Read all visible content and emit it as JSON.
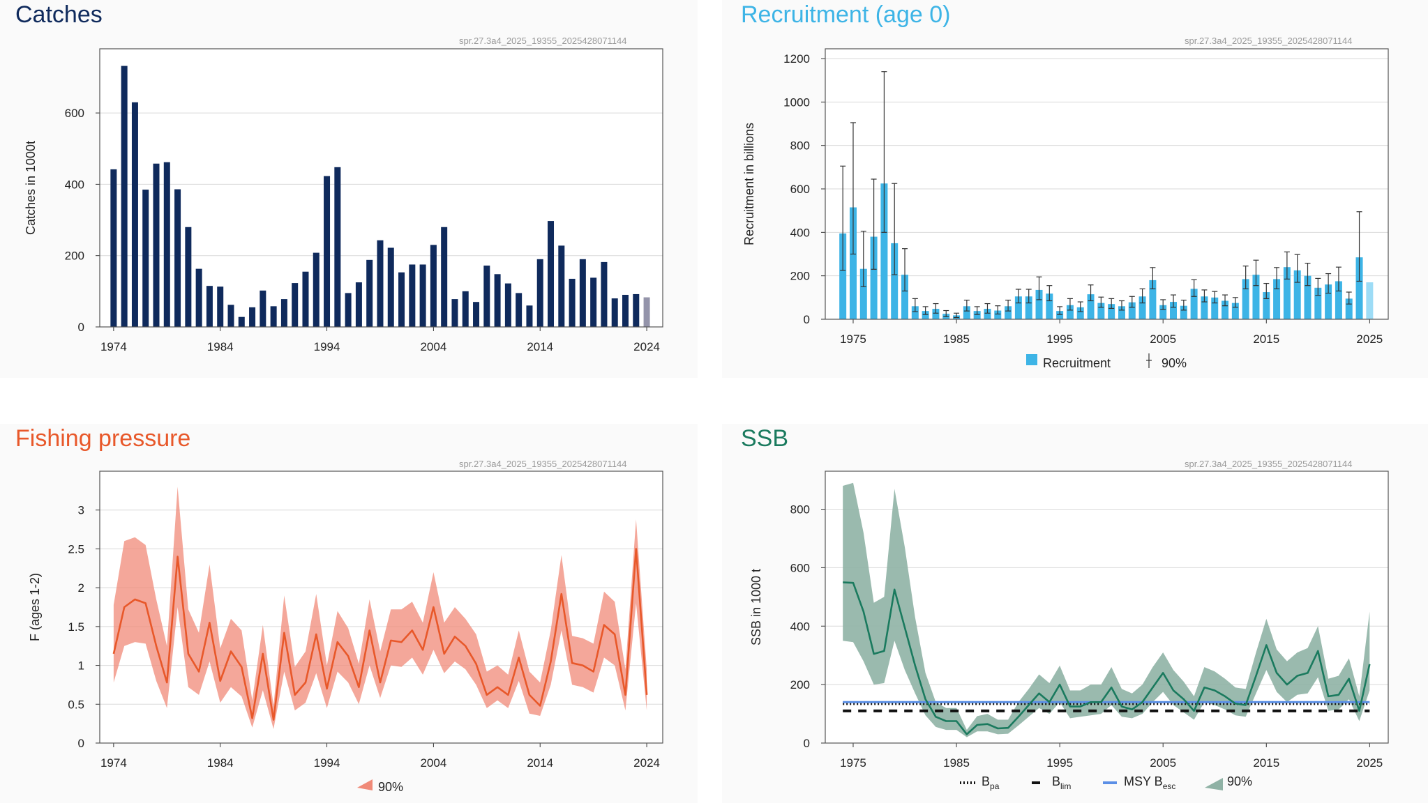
{
  "charts": {
    "catches": {
      "title": "Catches",
      "title_color": "#0f2a5c",
      "stamp": "spr.27.3a4_2025_19355_2025428071144",
      "chart_data": {
        "type": "bar",
        "ylabel": "Catches in 1000t",
        "xlim": [
          1972.7,
          2025.5
        ],
        "ylim": [
          0,
          780
        ],
        "yticks": [
          0,
          200,
          400,
          600
        ],
        "xticks": [
          1974,
          1984,
          1994,
          2004,
          2014,
          2024
        ],
        "bar_color": "#0f2a5c",
        "last_bar_color": "#9494aa",
        "x": [
          1974,
          1975,
          1976,
          1977,
          1978,
          1979,
          1980,
          1981,
          1982,
          1983,
          1984,
          1985,
          1986,
          1987,
          1988,
          1989,
          1990,
          1991,
          1992,
          1993,
          1994,
          1995,
          1996,
          1997,
          1998,
          1999,
          2000,
          2001,
          2002,
          2003,
          2004,
          2005,
          2006,
          2007,
          2008,
          2009,
          2010,
          2011,
          2012,
          2013,
          2014,
          2015,
          2016,
          2017,
          2018,
          2019,
          2020,
          2021,
          2022,
          2023,
          2024
        ],
        "values": [
          442,
          732,
          630,
          385,
          458,
          462,
          386,
          280,
          163,
          115,
          113,
          62,
          28,
          55,
          102,
          58,
          78,
          123,
          155,
          208,
          423,
          448,
          95,
          125,
          188,
          243,
          222,
          153,
          175,
          175,
          230,
          280,
          78,
          100,
          70,
          172,
          148,
          122,
          95,
          60,
          190,
          297,
          228,
          135,
          190,
          138,
          182,
          80,
          90,
          92,
          83
        ]
      }
    },
    "recruitment": {
      "title": "Recruitment (age 0)",
      "title_color": "#3db4e6",
      "stamp": "spr.27.3a4_2025_19355_2025428071144",
      "chart_data": {
        "type": "bar",
        "ylabel": "Recruitment in billions",
        "xlim": [
          1972.3,
          2026.8
        ],
        "ylim": [
          0,
          1245
        ],
        "yticks": [
          0,
          200,
          400,
          600,
          800,
          1000,
          1200
        ],
        "xticks": [
          1975,
          1985,
          1995,
          2005,
          2015,
          2025
        ],
        "bar_color": "#3db4e6",
        "last_bar_color": "#9ddcf6",
        "x": [
          1974,
          1975,
          1976,
          1977,
          1978,
          1979,
          1980,
          1981,
          1982,
          1983,
          1984,
          1985,
          1986,
          1987,
          1988,
          1989,
          1990,
          1991,
          1992,
          1993,
          1994,
          1995,
          1996,
          1997,
          1998,
          1999,
          2000,
          2001,
          2002,
          2003,
          2004,
          2005,
          2006,
          2007,
          2008,
          2009,
          2010,
          2011,
          2012,
          2013,
          2014,
          2015,
          2016,
          2017,
          2018,
          2019,
          2020,
          2021,
          2022,
          2023,
          2024,
          2025
        ],
        "values": [
          395,
          515,
          232,
          380,
          625,
          350,
          205,
          60,
          38,
          48,
          25,
          18,
          60,
          38,
          48,
          40,
          60,
          105,
          105,
          135,
          118,
          38,
          65,
          55,
          115,
          75,
          70,
          60,
          78,
          105,
          180,
          65,
          80,
          62,
          140,
          105,
          100,
          85,
          75,
          185,
          205,
          125,
          185,
          240,
          225,
          200,
          145,
          160,
          175,
          95,
          285,
          170
        ],
        "ci_low": [
          225,
          300,
          150,
          230,
          400,
          205,
          130,
          35,
          22,
          28,
          12,
          8,
          38,
          22,
          28,
          24,
          38,
          75,
          75,
          90,
          85,
          22,
          42,
          35,
          85,
          55,
          50,
          42,
          55,
          75,
          140,
          45,
          55,
          42,
          105,
          80,
          75,
          62,
          55,
          140,
          155,
          95,
          140,
          185,
          170,
          155,
          110,
          120,
          130,
          70,
          175,
          null
        ],
        "ci_high": [
          705,
          905,
          405,
          645,
          1140,
          625,
          325,
          95,
          58,
          72,
          40,
          28,
          88,
          58,
          72,
          62,
          88,
          138,
          138,
          195,
          155,
          58,
          95,
          80,
          158,
          102,
          95,
          85,
          105,
          140,
          238,
          90,
          112,
          88,
          182,
          135,
          128,
          112,
          100,
          245,
          272,
          165,
          238,
          310,
          298,
          258,
          188,
          210,
          240,
          125,
          495,
          null
        ],
        "legend": {
          "bar_label": "Recruitment",
          "ci_label": "90%"
        }
      }
    },
    "fishing": {
      "title": "Fishing pressure",
      "title_color": "#e8582a",
      "stamp": "spr.27.3a4_2025_19355_2025428071144",
      "chart_data": {
        "type": "area",
        "ylabel": "F (ages 1-2)",
        "xlim": [
          1972.7,
          2025.5
        ],
        "ylim": [
          0,
          3.5
        ],
        "yticks": [
          0,
          0.5,
          1,
          1.5,
          2,
          2.5,
          3
        ],
        "ytick_labels": [
          "0",
          "0.5",
          "1",
          "1.5",
          "2",
          "2.5",
          "3"
        ],
        "xticks": [
          1974,
          1984,
          1994,
          2004,
          2014,
          2024
        ],
        "line_color": "#e8582a",
        "band_color": "#f08a78",
        "x": [
          1974,
          1975,
          1976,
          1977,
          1978,
          1979,
          1980,
          1981,
          1982,
          1983,
          1984,
          1985,
          1986,
          1987,
          1988,
          1989,
          1990,
          1991,
          1992,
          1993,
          1994,
          1995,
          1996,
          1997,
          1998,
          1999,
          2000,
          2001,
          2002,
          2003,
          2004,
          2005,
          2006,
          2007,
          2008,
          2009,
          2010,
          2011,
          2012,
          2013,
          2014,
          2015,
          2016,
          2017,
          2018,
          2019,
          2020,
          2021,
          2022,
          2023,
          2024
        ],
        "values": [
          1.15,
          1.75,
          1.85,
          1.8,
          1.25,
          0.78,
          2.4,
          1.15,
          0.92,
          1.55,
          0.8,
          1.18,
          0.98,
          0.32,
          1.15,
          0.3,
          1.42,
          0.62,
          0.78,
          1.4,
          0.7,
          1.3,
          1.12,
          0.72,
          1.45,
          0.78,
          1.32,
          1.3,
          1.45,
          1.2,
          1.75,
          1.15,
          1.37,
          1.25,
          1.02,
          0.62,
          0.72,
          0.62,
          1.1,
          0.62,
          0.48,
          1.05,
          1.92,
          1.03,
          1.0,
          0.92,
          1.52,
          1.4,
          0.62,
          2.5,
          0.62
        ],
        "lower": [
          0.78,
          1.25,
          1.3,
          1.28,
          0.8,
          0.45,
          1.75,
          0.72,
          0.62,
          1.05,
          0.52,
          0.72,
          0.6,
          0.2,
          0.68,
          0.18,
          0.92,
          0.42,
          0.52,
          0.9,
          0.45,
          0.92,
          0.78,
          0.5,
          1.0,
          0.58,
          1.0,
          0.98,
          1.1,
          0.88,
          1.2,
          0.9,
          1.05,
          0.95,
          0.75,
          0.45,
          0.55,
          0.45,
          0.8,
          0.38,
          0.35,
          0.75,
          1.45,
          0.75,
          0.72,
          0.65,
          1.1,
          1.0,
          0.42,
          1.8,
          0.42
        ],
        "upper": [
          1.78,
          2.6,
          2.65,
          2.55,
          1.85,
          1.25,
          3.3,
          1.72,
          1.42,
          2.3,
          1.22,
          1.6,
          1.45,
          0.55,
          1.52,
          0.48,
          1.9,
          0.98,
          1.18,
          1.92,
          1.0,
          1.7,
          1.48,
          1.02,
          1.85,
          1.18,
          1.72,
          1.72,
          1.82,
          1.55,
          2.2,
          1.55,
          1.75,
          1.6,
          1.4,
          0.92,
          1.0,
          0.88,
          1.45,
          0.92,
          0.78,
          1.45,
          2.42,
          1.38,
          1.35,
          1.28,
          1.95,
          1.82,
          0.95,
          2.88,
          0.95
        ],
        "legend": {
          "band_label": "90%"
        }
      }
    },
    "ssb": {
      "title": "SSB",
      "title_color": "#1a7a5e",
      "stamp": "spr.27.3a4_2025_19355_2025428071144",
      "chart_data": {
        "type": "area",
        "ylabel": "SSB in 1000 t",
        "xlim": [
          1972.3,
          2026.8
        ],
        "ylim": [
          0,
          930
        ],
        "yticks": [
          0,
          200,
          400,
          600,
          800
        ],
        "xticks": [
          1975,
          1985,
          1995,
          2005,
          2015,
          2025
        ],
        "line_color": "#1a7a5e",
        "band_color": "#8fb2a5",
        "x": [
          1974,
          1975,
          1976,
          1977,
          1978,
          1979,
          1980,
          1981,
          1982,
          1983,
          1984,
          1985,
          1986,
          1987,
          1988,
          1989,
          1990,
          1991,
          1992,
          1993,
          1994,
          1995,
          1996,
          1997,
          1998,
          1999,
          2000,
          2001,
          2002,
          2003,
          2004,
          2005,
          2006,
          2007,
          2008,
          2009,
          2010,
          2011,
          2012,
          2013,
          2014,
          2015,
          2016,
          2017,
          2018,
          2019,
          2020,
          2021,
          2022,
          2023,
          2024,
          2025
        ],
        "values": [
          550,
          548,
          450,
          305,
          315,
          525,
          395,
          265,
          150,
          90,
          75,
          75,
          30,
          62,
          65,
          50,
          52,
          90,
          130,
          170,
          140,
          200,
          125,
          125,
          140,
          140,
          190,
          125,
          115,
          140,
          190,
          240,
          180,
          150,
          110,
          190,
          180,
          160,
          135,
          130,
          230,
          335,
          240,
          200,
          230,
          240,
          315,
          160,
          165,
          220,
          110,
          270
        ],
        "lower": [
          350,
          345,
          280,
          200,
          205,
          350,
          250,
          170,
          95,
          55,
          45,
          45,
          20,
          40,
          40,
          30,
          32,
          60,
          90,
          120,
          100,
          140,
          85,
          90,
          95,
          100,
          130,
          90,
          85,
          100,
          140,
          175,
          130,
          105,
          80,
          140,
          130,
          115,
          95,
          90,
          170,
          250,
          175,
          140,
          165,
          170,
          225,
          110,
          115,
          150,
          75,
          180
        ],
        "upper": [
          880,
          890,
          720,
          480,
          500,
          870,
          670,
          430,
          240,
          140,
          120,
          120,
          45,
          92,
          100,
          80,
          80,
          140,
          185,
          235,
          205,
          265,
          180,
          180,
          200,
          200,
          260,
          185,
          170,
          200,
          260,
          310,
          250,
          210,
          160,
          260,
          245,
          220,
          190,
          185,
          310,
          425,
          320,
          280,
          310,
          325,
          400,
          220,
          230,
          290,
          160,
          450
        ],
        "references": [
          {
            "name": "Bpa",
            "value": 135,
            "color": "#111111",
            "style": "dotted"
          },
          {
            "name": "Blim",
            "value": 110,
            "color": "#111111",
            "style": "dashed"
          },
          {
            "name": "MSY Besc",
            "value": 140,
            "color": "#5b8fe6",
            "style": "solid"
          }
        ],
        "legend": {
          "bpa_label": "B",
          "bpa_sub": "pa",
          "blim_label": "B",
          "blim_sub": "lim",
          "msy_label": "MSY B",
          "msy_sub": "esc",
          "band_label": "90%"
        }
      }
    }
  }
}
